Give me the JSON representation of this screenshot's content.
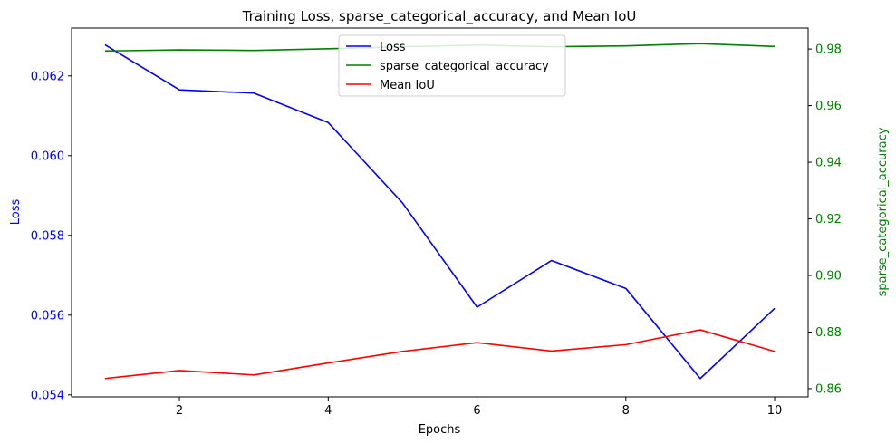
{
  "chart_data": {
    "type": "line",
    "title": "Training Loss, sparse_categorical_accuracy, and Mean IoU",
    "xlabel": "Epochs",
    "ylabel_left": "Loss",
    "ylabel_right": "sparse_categorical_accuracy",
    "x": [
      1,
      2,
      3,
      4,
      5,
      6,
      7,
      8,
      9,
      10
    ],
    "xlim": [
      0.55,
      10.45
    ],
    "xticks": [
      2,
      4,
      6,
      8,
      10
    ],
    "ylim_left": [
      0.05395,
      0.0632
    ],
    "yticks_left": [
      "0.054",
      "0.056",
      "0.058",
      "0.060",
      "0.062"
    ],
    "ylim_right": [
      0.8571,
      0.9874
    ],
    "yticks_right": [
      "0.86",
      "0.88",
      "0.90",
      "0.92",
      "0.94",
      "0.96",
      "0.98"
    ],
    "grid": false,
    "legend_position": "top-center",
    "series": [
      {
        "name": "Loss",
        "axis": "left",
        "color": "#0000ff",
        "values": [
          0.06278,
          0.06165,
          0.06157,
          0.06083,
          0.05881,
          0.0562,
          0.05737,
          0.05667,
          0.05441,
          0.05617
        ]
      },
      {
        "name": "sparse_categorical_accuracy",
        "axis": "right",
        "color": "#008000",
        "values": [
          0.9793,
          0.9797,
          0.9795,
          0.9801,
          0.9808,
          0.9814,
          0.9808,
          0.9811,
          0.9819,
          0.9809
        ]
      },
      {
        "name": "Mean IoU",
        "axis": "left",
        "color": "#ff0000",
        "values": [
          0.05441,
          0.05461,
          0.0545,
          0.0548,
          0.05509,
          0.05531,
          0.0551,
          0.05526,
          0.05563,
          0.05509
        ]
      }
    ],
    "colors": {
      "left_axis": "#0000ff",
      "right_axis": "#008000",
      "bottom_axis": "#000000"
    }
  }
}
